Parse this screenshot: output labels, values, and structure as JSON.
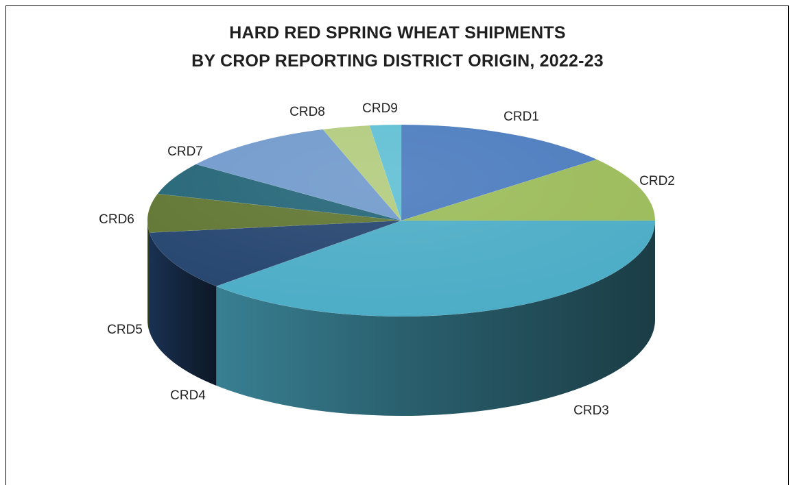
{
  "chart_data": {
    "type": "pie",
    "title_lines": [
      "HARD RED SPRING WHEAT SHIPMENTS",
      "BY CROP REPORTING DISTRICT ORIGIN, 2022-23"
    ],
    "categories": [
      "CRD1",
      "CRD2",
      "CRD3",
      "CRD4",
      "CRD5",
      "CRD6",
      "CRD7",
      "CRD8",
      "CRD9"
    ],
    "values": [
      14,
      11,
      38,
      10,
      6.5,
      5.5,
      10,
      3,
      2
    ],
    "colors": [
      "#4b7bbe",
      "#9bbb59",
      "#4bacc6",
      "#23436e",
      "#5f7530",
      "#226476",
      "#7099cc",
      "#b2cb7d",
      "#5fbfd3"
    ],
    "start": "12 o'clock, clockwise",
    "style": "3d-tilted",
    "legend": "none"
  }
}
